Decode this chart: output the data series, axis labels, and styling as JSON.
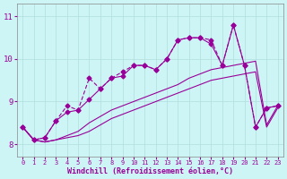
{
  "title": "",
  "xlabel": "Windchill (Refroidissement éolien,°C)",
  "ylabel": "",
  "bg_color": "#cef5f5",
  "line_color": "#990099",
  "grid_color": "#b0dede",
  "xlim": [
    -0.5,
    23.5
  ],
  "ylim": [
    7.7,
    11.3
  ],
  "yticks": [
    8,
    9,
    10,
    11
  ],
  "xticks": [
    0,
    1,
    2,
    3,
    4,
    5,
    6,
    7,
    8,
    9,
    10,
    11,
    12,
    13,
    14,
    15,
    16,
    17,
    18,
    19,
    20,
    21,
    22,
    23
  ],
  "line_smooth_x": [
    0,
    1,
    2,
    3,
    4,
    5,
    6,
    7,
    8,
    9,
    10,
    11,
    12,
    13,
    14,
    15,
    16,
    17,
    18,
    19,
    20,
    21,
    22,
    23
  ],
  "line_smooth_y": [
    8.4,
    8.1,
    8.05,
    8.1,
    8.15,
    8.2,
    8.3,
    8.45,
    8.6,
    8.7,
    8.8,
    8.9,
    9.0,
    9.1,
    9.2,
    9.3,
    9.4,
    9.5,
    9.55,
    9.6,
    9.65,
    9.7,
    8.4,
    8.85
  ],
  "line_smooth2_x": [
    0,
    1,
    2,
    3,
    4,
    5,
    6,
    7,
    8,
    9,
    10,
    11,
    12,
    13,
    14,
    15,
    16,
    17,
    18,
    19,
    20,
    21,
    22,
    23
  ],
  "line_smooth2_y": [
    8.4,
    8.1,
    8.05,
    8.1,
    8.2,
    8.3,
    8.5,
    8.65,
    8.8,
    8.9,
    9.0,
    9.1,
    9.2,
    9.3,
    9.4,
    9.55,
    9.65,
    9.75,
    9.8,
    9.85,
    9.9,
    9.95,
    8.45,
    8.9
  ],
  "line_jagged1_x": [
    0,
    1,
    2,
    3,
    4,
    5,
    6,
    7,
    8,
    9,
    10,
    11,
    12,
    13,
    14,
    15,
    16,
    17,
    18,
    19,
    20,
    21,
    22,
    23
  ],
  "line_jagged1_y": [
    8.4,
    8.1,
    8.15,
    8.55,
    8.75,
    8.8,
    9.05,
    9.3,
    9.55,
    9.6,
    9.85,
    9.85,
    9.75,
    10.0,
    10.45,
    10.5,
    10.5,
    10.35,
    9.85,
    10.8,
    9.85,
    8.4,
    8.85,
    8.9
  ],
  "line_jagged2_x": [
    0,
    1,
    2,
    3,
    4,
    5,
    6,
    7,
    8,
    9,
    10,
    11,
    12,
    13,
    14,
    15,
    16,
    17,
    18,
    19,
    20,
    21,
    22,
    23
  ],
  "line_jagged2_y": [
    8.4,
    8.1,
    8.15,
    8.55,
    8.9,
    8.8,
    9.55,
    9.3,
    9.55,
    9.7,
    9.85,
    9.85,
    9.75,
    10.0,
    10.45,
    10.5,
    10.5,
    10.45,
    9.85,
    10.8,
    9.85,
    8.4,
    8.85,
    8.9
  ]
}
